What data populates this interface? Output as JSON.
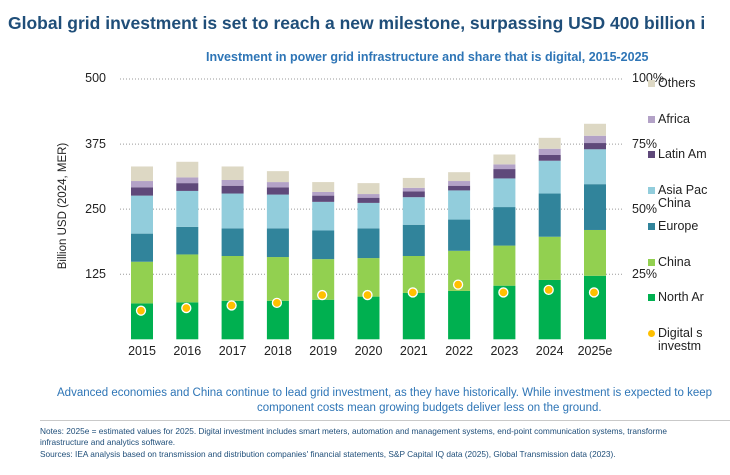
{
  "title": "Global grid investment is set to reach a new milestone, surpassing USD 400 billion i",
  "chart_data": {
    "type": "bar",
    "stacked": true,
    "title": "Investment in power grid infrastructure and share that is digital, 2015-2025",
    "ylabel": "Billion USD (2024, MER)",
    "ylim": [
      0,
      500
    ],
    "yticks": [
      "500",
      "375",
      "250",
      "125"
    ],
    "y2lim": [
      0,
      100
    ],
    "y2ticks": [
      "100%",
      "75%",
      "50%",
      "25%"
    ],
    "grid": true,
    "legend_position": "right",
    "categories": [
      "2015",
      "2016",
      "2017",
      "2018",
      "2019",
      "2020",
      "2021",
      "2022",
      "2023",
      "2024",
      "2025e"
    ],
    "series": [
      {
        "name": "North Ar",
        "color": "#00b050",
        "values": [
          69,
          71,
          74,
          74,
          76,
          82,
          89,
          93,
          103,
          114,
          122
        ]
      },
      {
        "name": "China",
        "color": "#92d050",
        "values": [
          80,
          92,
          86,
          84,
          78,
          74,
          71,
          77,
          77,
          83,
          88
        ]
      },
      {
        "name": "Europe",
        "color": "#31849b",
        "values": [
          54,
          53,
          53,
          55,
          55,
          57,
          60,
          60,
          74,
          83,
          88
        ]
      },
      {
        "name": "Asia Pac China",
        "label_lines": [
          "Asia Pac",
          "China"
        ],
        "color": "#92cddc",
        "values": [
          73,
          69,
          67,
          65,
          55,
          49,
          53,
          56,
          55,
          63,
          67
        ]
      },
      {
        "name": "Latin Am",
        "color": "#5f497a",
        "values": [
          16,
          15,
          15,
          14,
          12,
          10,
          11,
          9,
          18,
          11,
          12
        ]
      },
      {
        "name": "Africa",
        "color": "#b3a2c7",
        "values": [
          12,
          11,
          11,
          10,
          7,
          7,
          7,
          9,
          9,
          12,
          14
        ]
      },
      {
        "name": "Others",
        "color": "#ddd8c4",
        "values": [
          28,
          30,
          26,
          21,
          19,
          21,
          19,
          17,
          19,
          21,
          23
        ]
      }
    ],
    "digital_share": {
      "name": "Digital s investm",
      "label_lines": [
        "Digital s",
        "investm"
      ],
      "color": "#ffc000",
      "axis": "right",
      "unit": "%",
      "values": [
        11,
        12,
        13,
        14,
        17,
        17,
        18,
        21,
        18,
        19,
        18
      ]
    }
  },
  "caption": {
    "line1": "Advanced economies and China continue to lead grid investment, as they have historically. While investment is expected to keep",
    "line2": "component costs mean growing budgets deliver less on the ground."
  },
  "notes": {
    "line1": "Notes: 2025e = estimated values for 2025. Digital investment includes smart meters, automation and management systems, end-point communication systems, transforme",
    "line2": "infrastructure and analytics software.",
    "sources": "Sources: IEA analysis based on transmission and distribution companies' financial statements, S&P Capital IQ data (2025), Global Transmission data (2023)."
  }
}
